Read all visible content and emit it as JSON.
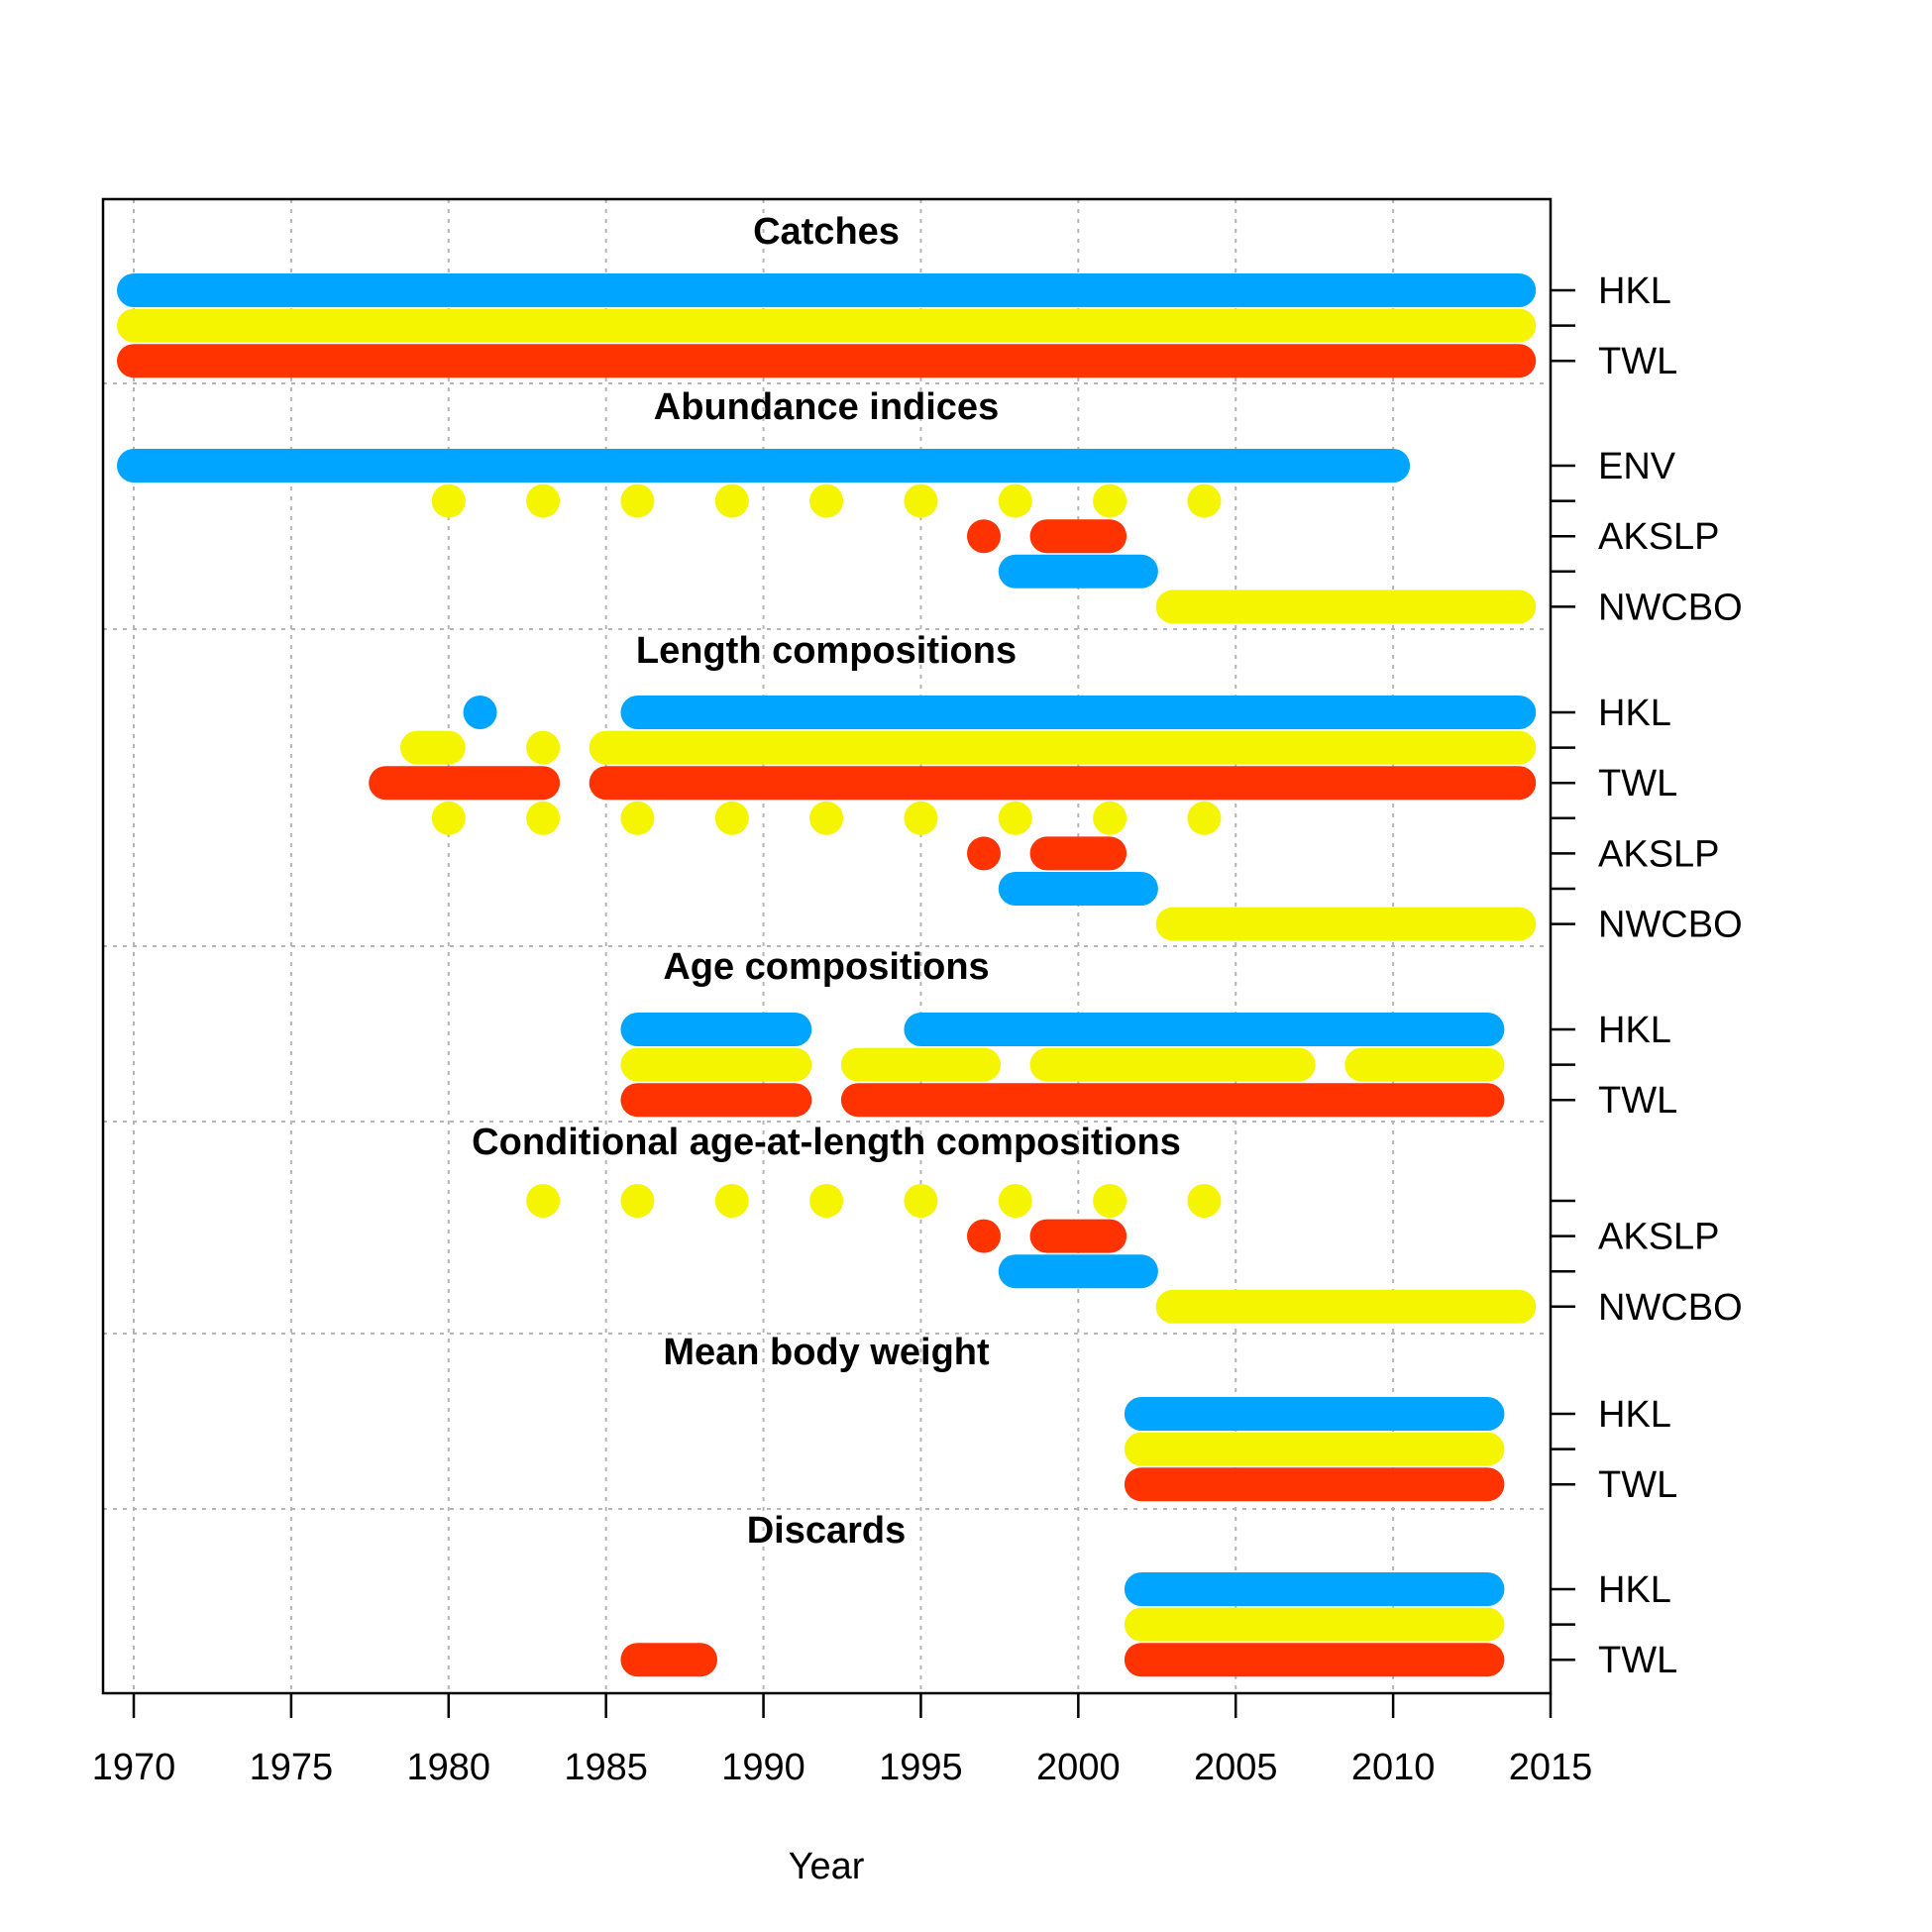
{
  "chart_data": {
    "type": "timeline",
    "xlabel": "Year",
    "xlim": [
      1970,
      2015
    ],
    "x_ticks": [
      1970,
      1975,
      1980,
      1985,
      1990,
      1995,
      2000,
      2005,
      2010,
      2015
    ],
    "grid": true,
    "colors": {
      "blue": "#00A5FF",
      "yellow": "#F5F500",
      "red": "#FF3300"
    },
    "panels": [
      {
        "title": "Catches",
        "labels": [
          {
            "row": 0,
            "text": "HKL"
          },
          {
            "row": 2,
            "text": "TWL"
          }
        ],
        "rows": [
          {
            "color": "blue",
            "segments": [
              [
                1970,
                2014
              ]
            ]
          },
          {
            "color": "yellow",
            "segments": [
              [
                1970,
                2014
              ]
            ]
          },
          {
            "color": "red",
            "segments": [
              [
                1970,
                2014
              ]
            ]
          }
        ]
      },
      {
        "title": "Abundance indices",
        "labels": [
          {
            "row": 0,
            "text": "ENV"
          },
          {
            "row": 2,
            "text": "AKSLP"
          },
          {
            "row": 4,
            "text": "NWCBO"
          }
        ],
        "rows": [
          {
            "color": "blue",
            "segments": [
              [
                1970,
                2010
              ]
            ]
          },
          {
            "color": "yellow",
            "segments": [
              [
                1980,
                1980
              ],
              [
                1983,
                1983
              ],
              [
                1986,
                1986
              ],
              [
                1989,
                1989
              ],
              [
                1992,
                1992
              ],
              [
                1995,
                1995
              ],
              [
                1998,
                1998
              ],
              [
                2001,
                2001
              ],
              [
                2004,
                2004
              ]
            ]
          },
          {
            "color": "red",
            "segments": [
              [
                1997,
                1997
              ],
              [
                1999,
                2001
              ]
            ]
          },
          {
            "color": "blue",
            "segments": [
              [
                1998,
                2002
              ]
            ]
          },
          {
            "color": "yellow",
            "segments": [
              [
                2003,
                2014
              ]
            ]
          }
        ]
      },
      {
        "title": "Length compositions",
        "labels": [
          {
            "row": 0,
            "text": "HKL"
          },
          {
            "row": 2,
            "text": "TWL"
          },
          {
            "row": 4,
            "text": "AKSLP"
          },
          {
            "row": 6,
            "text": "NWCBO"
          }
        ],
        "rows": [
          {
            "color": "blue",
            "segments": [
              [
                1981,
                1981
              ],
              [
                1986,
                2014
              ]
            ]
          },
          {
            "color": "yellow",
            "segments": [
              [
                1979,
                1980
              ],
              [
                1983,
                1983
              ],
              [
                1985,
                2014
              ]
            ]
          },
          {
            "color": "red",
            "segments": [
              [
                1978,
                1983
              ],
              [
                1985,
                2014
              ]
            ]
          },
          {
            "color": "yellow",
            "segments": [
              [
                1980,
                1980
              ],
              [
                1983,
                1983
              ],
              [
                1986,
                1986
              ],
              [
                1989,
                1989
              ],
              [
                1992,
                1992
              ],
              [
                1995,
                1995
              ],
              [
                1998,
                1998
              ],
              [
                2001,
                2001
              ],
              [
                2004,
                2004
              ]
            ]
          },
          {
            "color": "red",
            "segments": [
              [
                1997,
                1997
              ],
              [
                1999,
                2001
              ]
            ]
          },
          {
            "color": "blue",
            "segments": [
              [
                1998,
                2002
              ]
            ]
          },
          {
            "color": "yellow",
            "segments": [
              [
                2003,
                2014
              ]
            ]
          }
        ]
      },
      {
        "title": "Age compositions",
        "labels": [
          {
            "row": 0,
            "text": "HKL"
          },
          {
            "row": 2,
            "text": "TWL"
          }
        ],
        "rows": [
          {
            "color": "blue",
            "segments": [
              [
                1986,
                1991
              ],
              [
                1995,
                2013
              ]
            ]
          },
          {
            "color": "yellow",
            "segments": [
              [
                1986,
                1991
              ],
              [
                1993,
                1997
              ],
              [
                1999,
                2007
              ],
              [
                2009,
                2013
              ]
            ]
          },
          {
            "color": "red",
            "segments": [
              [
                1986,
                1991
              ],
              [
                1993,
                2013
              ]
            ]
          }
        ]
      },
      {
        "title": "Conditional age-at-length compositions",
        "labels": [
          {
            "row": 1,
            "text": "AKSLP"
          },
          {
            "row": 3,
            "text": "NWCBO"
          }
        ],
        "rows": [
          {
            "color": "yellow",
            "segments": [
              [
                1983,
                1983
              ],
              [
                1986,
                1986
              ],
              [
                1989,
                1989
              ],
              [
                1992,
                1992
              ],
              [
                1995,
                1995
              ],
              [
                1998,
                1998
              ],
              [
                2001,
                2001
              ],
              [
                2004,
                2004
              ]
            ]
          },
          {
            "color": "red",
            "segments": [
              [
                1997,
                1997
              ],
              [
                1999,
                2001
              ]
            ]
          },
          {
            "color": "blue",
            "segments": [
              [
                1998,
                2002
              ]
            ]
          },
          {
            "color": "yellow",
            "segments": [
              [
                2003,
                2014
              ]
            ]
          }
        ]
      },
      {
        "title": "Mean body weight",
        "labels": [
          {
            "row": 0,
            "text": "HKL"
          },
          {
            "row": 2,
            "text": "TWL"
          }
        ],
        "rows": [
          {
            "color": "blue",
            "segments": [
              [
                2002,
                2013
              ]
            ]
          },
          {
            "color": "yellow",
            "segments": [
              [
                2002,
                2013
              ]
            ]
          },
          {
            "color": "red",
            "segments": [
              [
                2002,
                2013
              ]
            ]
          }
        ]
      },
      {
        "title": "Discards",
        "labels": [
          {
            "row": 0,
            "text": "HKL"
          },
          {
            "row": 2,
            "text": "TWL"
          }
        ],
        "rows": [
          {
            "color": "blue",
            "segments": [
              [
                2002,
                2013
              ]
            ]
          },
          {
            "color": "yellow",
            "segments": [
              [
                2002,
                2013
              ]
            ]
          },
          {
            "color": "red",
            "segments": [
              [
                1986,
                1988
              ],
              [
                2002,
                2013
              ]
            ]
          }
        ]
      }
    ]
  }
}
